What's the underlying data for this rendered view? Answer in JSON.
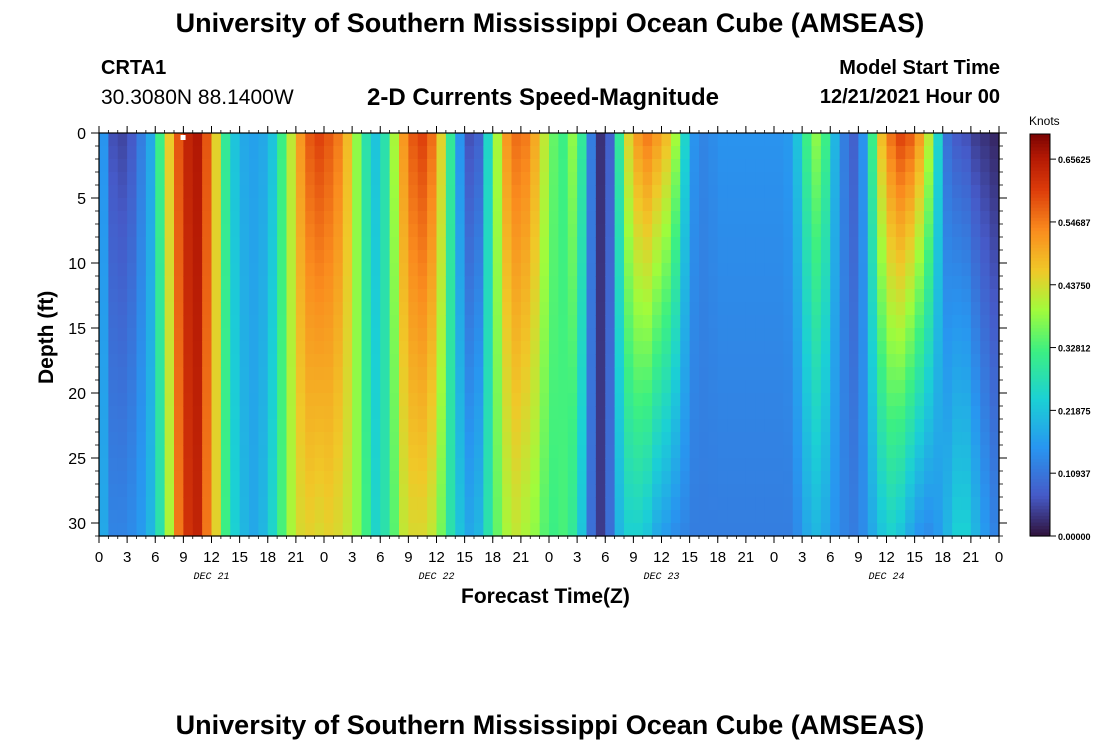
{
  "header": {
    "title": "University of Southern Mississippi Ocean Cube (AMSEAS)",
    "station_id": "CRTA1",
    "station_coords": "30.3080N  88.1400W",
    "plot_title": "2-D Currents Speed-Magnitude",
    "model_start_label": "Model Start Time",
    "model_start_value": "12/21/2021 Hour 00"
  },
  "footer": {
    "title": "University of Southern Mississippi Ocean Cube (AMSEAS)"
  },
  "chart_data": {
    "type": "heatmap",
    "title": "2-D Currents Speed-Magnitude",
    "xlabel": "Forecast Time(Z)",
    "ylabel": "Depth (ft)",
    "x_ticks": [
      "0",
      "3",
      "6",
      "9",
      "12",
      "15",
      "18",
      "21",
      "0",
      "3",
      "6",
      "9",
      "12",
      "15",
      "18",
      "21",
      "0",
      "3",
      "6",
      "9",
      "12",
      "15",
      "18",
      "21",
      "0",
      "3",
      "6",
      "9",
      "12",
      "15",
      "18",
      "21",
      "0"
    ],
    "day_labels": [
      {
        "label": "DEC 21",
        "hour": 12
      },
      {
        "label": "DEC 22",
        "hour": 36
      },
      {
        "label": "DEC 23",
        "hour": 60
      },
      {
        "label": "DEC 24",
        "hour": 84
      }
    ],
    "xlim_hours": [
      0,
      96
    ],
    "y_ticks": [
      "0",
      "5",
      "10",
      "15",
      "20",
      "25",
      "30"
    ],
    "ylim_ft": [
      0,
      31
    ],
    "colorbar": {
      "unit": "Knots",
      "range": [
        0,
        0.7
      ],
      "tick_labels": [
        "0.65625",
        "0.54687",
        "0.43750",
        "0.32812",
        "0.21875",
        "0.10937",
        "0.00000"
      ],
      "tick_values": [
        0.65625,
        0.546875,
        0.4375,
        0.328125,
        0.21875,
        0.109375,
        0.0
      ]
    },
    "speed_by_hour_knots": {
      "hours": [
        0,
        1,
        2,
        3,
        4,
        5,
        6,
        7,
        8,
        9,
        10,
        11,
        12,
        13,
        14,
        15,
        16,
        17,
        18,
        19,
        20,
        21,
        22,
        23,
        24,
        25,
        26,
        27,
        28,
        29,
        30,
        31,
        32,
        33,
        34,
        35,
        36,
        37,
        38,
        39,
        40,
        41,
        42,
        43,
        44,
        45,
        46,
        47,
        48,
        49,
        50,
        51,
        52,
        53,
        54,
        55,
        56,
        57,
        58,
        59,
        60,
        61,
        62,
        63,
        64,
        65,
        66,
        67,
        68,
        69,
        70,
        71,
        72,
        73,
        74,
        75,
        76,
        77,
        78,
        79,
        80,
        81,
        82,
        83,
        84,
        85,
        86,
        87,
        88,
        89,
        90,
        91,
        92,
        93,
        94,
        95,
        96
      ],
      "surface": [
        0.15,
        0.06,
        0.05,
        0.07,
        0.12,
        0.18,
        0.32,
        0.46,
        0.58,
        0.64,
        0.66,
        0.58,
        0.45,
        0.3,
        0.22,
        0.18,
        0.17,
        0.18,
        0.22,
        0.32,
        0.42,
        0.52,
        0.58,
        0.6,
        0.58,
        0.55,
        0.48,
        0.38,
        0.28,
        0.22,
        0.28,
        0.4,
        0.52,
        0.58,
        0.6,
        0.56,
        0.45,
        0.3,
        0.15,
        0.06,
        0.08,
        0.25,
        0.4,
        0.52,
        0.56,
        0.55,
        0.5,
        0.42,
        0.35,
        0.32,
        0.38,
        0.3,
        0.12,
        0.03,
        0.08,
        0.3,
        0.45,
        0.52,
        0.55,
        0.52,
        0.48,
        0.4,
        0.25,
        0.15,
        0.13,
        0.14,
        0.15,
        0.15,
        0.15,
        0.15,
        0.15,
        0.15,
        0.15,
        0.16,
        0.22,
        0.32,
        0.38,
        0.32,
        0.2,
        0.12,
        0.08,
        0.15,
        0.32,
        0.48,
        0.56,
        0.6,
        0.58,
        0.52,
        0.42,
        0.25,
        0.1,
        0.07,
        0.06,
        0.04,
        0.03,
        0.02,
        0.03
      ],
      "bottom": [
        0.18,
        0.13,
        0.13,
        0.14,
        0.16,
        0.2,
        0.28,
        0.4,
        0.55,
        0.62,
        0.64,
        0.55,
        0.45,
        0.32,
        0.24,
        0.2,
        0.18,
        0.2,
        0.25,
        0.33,
        0.4,
        0.44,
        0.45,
        0.44,
        0.45,
        0.44,
        0.42,
        0.38,
        0.32,
        0.25,
        0.28,
        0.34,
        0.42,
        0.44,
        0.44,
        0.42,
        0.36,
        0.28,
        0.22,
        0.18,
        0.2,
        0.28,
        0.35,
        0.4,
        0.42,
        0.4,
        0.38,
        0.34,
        0.32,
        0.33,
        0.3,
        0.22,
        0.1,
        0.04,
        0.1,
        0.2,
        0.24,
        0.24,
        0.22,
        0.18,
        0.16,
        0.14,
        0.13,
        0.12,
        0.12,
        0.12,
        0.12,
        0.12,
        0.12,
        0.12,
        0.12,
        0.12,
        0.12,
        0.12,
        0.14,
        0.18,
        0.2,
        0.18,
        0.15,
        0.13,
        0.12,
        0.14,
        0.18,
        0.22,
        0.24,
        0.22,
        0.18,
        0.15,
        0.14,
        0.16,
        0.2,
        0.24,
        0.24,
        0.2,
        0.16,
        0.13,
        0.12
      ]
    }
  }
}
